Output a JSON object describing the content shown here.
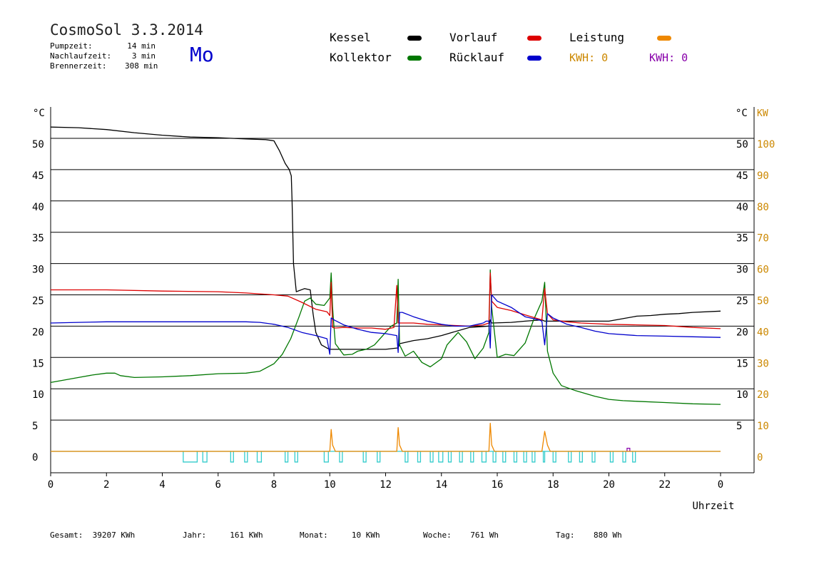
{
  "header": {
    "title": "CosmoSol 3.3.2014",
    "day": "Mo",
    "stats": [
      {
        "label": "Pumpzeit:",
        "value": "14 min"
      },
      {
        "label": "Nachlaufzeit:",
        "value": "3 min"
      },
      {
        "label": "Brennerzeit:",
        "value": "308 min"
      }
    ]
  },
  "legend": {
    "kessel": "Kessel",
    "kollektor": "Kollektor",
    "vorlauf": "Vorlauf",
    "ruecklauf": "Rücklauf",
    "leistung": "Leistung",
    "kwh_orange": "KWH: 0",
    "kwh_purple": "KWH: 0"
  },
  "colors": {
    "kessel": "#000000",
    "kollektor": "#007700",
    "vorlauf": "#dd0000",
    "ruecklauf": "#0000cc",
    "leistung": "#ee8800",
    "pump": "#33cccc",
    "purple": "#8800aa",
    "axis_kw": "#cc8800"
  },
  "footer": [
    {
      "label": "Gesamt:",
      "value": "39207 KWh"
    },
    {
      "label": "Jahr:",
      "value": "161 KWh"
    },
    {
      "label": "Monat:",
      "value": "10 KWh"
    },
    {
      "label": "Woche:",
      "value": "761 Wh"
    },
    {
      "label": "Tag:",
      "value": "880 Wh"
    }
  ],
  "chart_data": {
    "type": "line",
    "xlabel": "Uhrzeit",
    "x_ticks": [
      "0",
      "2",
      "4",
      "6",
      "8",
      "10",
      "12",
      "14",
      "16",
      "18",
      "20",
      "22",
      "0"
    ],
    "xlim": [
      0,
      24
    ],
    "y_left_label": "°C",
    "y_left_ticks": [
      0,
      5,
      10,
      15,
      20,
      25,
      30,
      35,
      40,
      45,
      50
    ],
    "ylim": [
      -3.5,
      53
    ],
    "y_right_label": "°C",
    "y_right_ticks": [
      5,
      10,
      15,
      20,
      25,
      30,
      35,
      40,
      45,
      50
    ],
    "y_right2_label": "KW",
    "y_right2_ticks": [
      0,
      10,
      20,
      30,
      40,
      50,
      60,
      70,
      80,
      90,
      100
    ],
    "grid": true,
    "series": [
      {
        "name": "Kessel",
        "x": [
          0,
          1,
          2,
          3,
          4,
          5,
          6,
          7,
          7.7,
          8,
          8.2,
          8.4,
          8.55,
          8.62,
          8.65,
          8.7,
          8.8,
          9.1,
          9.3,
          9.4,
          9.5,
          9.7,
          9.9,
          10,
          10.2,
          10.5,
          10.8,
          11,
          11.2,
          11.5,
          12,
          12.4,
          12.45,
          12.5,
          13,
          13.5,
          14,
          15,
          15.7,
          15.75,
          15.8,
          16.5,
          17,
          17.6,
          17.7,
          18,
          19,
          20,
          20.5,
          21,
          21.5,
          22,
          22.5,
          23,
          24
        ],
        "y": [
          51.8,
          51.7,
          51.4,
          50.9,
          50.5,
          50.2,
          50.1,
          49.9,
          49.8,
          49.6,
          48,
          46,
          45,
          44,
          40,
          30,
          25.5,
          26,
          25.8,
          22,
          19,
          17,
          16.5,
          16.3,
          16.3,
          16.3,
          16.3,
          16.3,
          16.3,
          16.3,
          16.3,
          16.5,
          16.5,
          17.2,
          17.7,
          18,
          18.5,
          19.8,
          20,
          21,
          20.5,
          20.6,
          20.8,
          21,
          20.8,
          20.8,
          20.8,
          20.8,
          21.2,
          21.6,
          21.7,
          21.9,
          22,
          22.2,
          22.4
        ]
      },
      {
        "name": "Kollektor",
        "x": [
          0,
          0.5,
          1,
          1.5,
          2,
          2.3,
          2.5,
          3,
          4,
          5,
          6,
          7,
          7.5,
          8,
          8.3,
          8.6,
          8.9,
          9.1,
          9.3,
          9.5,
          9.8,
          10,
          10.05,
          10.1,
          10.15,
          10.2,
          10.5,
          10.8,
          11,
          11.3,
          11.6,
          12,
          12.2,
          12.4,
          12.45,
          12.5,
          12.7,
          13,
          13.3,
          13.6,
          14,
          14.2,
          14.6,
          14.9,
          15.2,
          15.5,
          15.7,
          15.75,
          15.8,
          16,
          16.3,
          16.6,
          17,
          17.3,
          17.6,
          17.7,
          17.8,
          18,
          18.3,
          18.8,
          19.5,
          20,
          20.5,
          21,
          22,
          23,
          24
        ],
        "y": [
          11,
          11.4,
          11.8,
          12.2,
          12.5,
          12.5,
          12.1,
          11.8,
          11.9,
          12.1,
          12.4,
          12.5,
          12.8,
          14,
          15.5,
          18,
          21.5,
          24,
          24.5,
          23.5,
          23.3,
          24.5,
          28.5,
          23,
          20,
          17.2,
          15.4,
          15.5,
          16,
          16.3,
          17,
          19,
          20,
          20.5,
          27.5,
          17,
          15.2,
          16,
          14.2,
          13.5,
          14.8,
          17,
          19,
          17.5,
          14.8,
          16.5,
          19,
          29,
          23,
          15,
          15.5,
          15.3,
          17.3,
          21,
          24,
          27,
          16,
          12.5,
          10.5,
          9.7,
          8.8,
          8.3,
          8.1,
          8,
          7.8,
          7.6,
          7.5
        ]
      },
      {
        "name": "Vorlauf",
        "x": [
          0,
          2,
          4,
          6,
          7,
          8,
          8.5,
          9,
          9.5,
          9.9,
          10,
          10.05,
          10.1,
          10.2,
          10.5,
          11,
          11.5,
          12,
          12.3,
          12.4,
          12.45,
          12.5,
          13,
          13.5,
          14,
          14.5,
          15,
          15.5,
          15.7,
          15.75,
          15.8,
          16,
          16.5,
          17,
          17.6,
          17.7,
          17.8,
          18,
          18.5,
          19,
          19.5,
          20,
          21,
          22,
          23,
          24
        ],
        "y": [
          25.8,
          25.8,
          25.6,
          25.5,
          25.3,
          25,
          24.8,
          23.8,
          22.7,
          22.3,
          21.7,
          27,
          19.8,
          19.7,
          19.8,
          19.7,
          19.7,
          19.5,
          19.8,
          26.5,
          20.5,
          20.5,
          20.5,
          20.3,
          20.2,
          20.1,
          20,
          20.2,
          20.5,
          28.5,
          24,
          23,
          22.5,
          21.8,
          21,
          26,
          22,
          21,
          20.7,
          20.5,
          20.4,
          20.3,
          20.2,
          20.1,
          19.8,
          19.6
        ]
      },
      {
        "name": "Rücklauf",
        "x": [
          0,
          1,
          2,
          3,
          4,
          5,
          6,
          7,
          7.5,
          8,
          8.5,
          9,
          9.5,
          9.9,
          10,
          10.05,
          10.1,
          10.15,
          10.5,
          11,
          11.5,
          12,
          12.4,
          12.45,
          12.5,
          12.6,
          13,
          13.5,
          14,
          14.5,
          15,
          15.5,
          15.6,
          15.7,
          15.75,
          15.8,
          16,
          16.5,
          17,
          17.5,
          17.6,
          17.7,
          17.8,
          18,
          18.5,
          19,
          19.5,
          20,
          21,
          22,
          23,
          24
        ],
        "y": [
          20.5,
          20.6,
          20.7,
          20.7,
          20.7,
          20.7,
          20.7,
          20.7,
          20.6,
          20.3,
          19.8,
          19,
          18.5,
          18,
          15.5,
          21.3,
          21.2,
          21,
          20.2,
          19.5,
          19,
          18.8,
          18.5,
          15.8,
          22.2,
          22.2,
          21.5,
          20.8,
          20.3,
          20,
          20,
          20.5,
          20.8,
          20.8,
          16.5,
          25,
          24,
          23,
          21.5,
          21,
          20.8,
          17,
          22,
          21.3,
          20.3,
          19.8,
          19.2,
          18.8,
          18.5,
          18.4,
          18.3,
          18.2
        ]
      },
      {
        "name": "Leistung",
        "x": [
          0,
          9.9,
          10,
          10.05,
          10.1,
          10.2,
          12.3,
          12.4,
          12.45,
          12.5,
          12.6,
          15.6,
          15.7,
          15.75,
          15.8,
          15.9,
          17.5,
          17.6,
          17.7,
          17.8,
          17.9,
          24
        ],
        "y": [
          0,
          0,
          0,
          3.5,
          1,
          0,
          0,
          0,
          3.8,
          1,
          0,
          0,
          0,
          4.5,
          1,
          0,
          0,
          0,
          3.2,
          1,
          0,
          0
        ]
      },
      {
        "name": "Pumpe",
        "x": [
          0,
          24
        ],
        "y": [
          0,
          0
        ]
      }
    ],
    "pump_pulses": [
      [
        4.75,
        5.25
      ],
      [
        5.45,
        5.6
      ],
      [
        6.45,
        6.55
      ],
      [
        6.95,
        7.05
      ],
      [
        7.4,
        7.55
      ],
      [
        8.4,
        8.5
      ],
      [
        8.75,
        8.85
      ],
      [
        9.8,
        9.95
      ],
      [
        10.35,
        10.45
      ],
      [
        11.2,
        11.3
      ],
      [
        11.7,
        11.8
      ],
      [
        12.7,
        12.8
      ],
      [
        13.15,
        13.25
      ],
      [
        13.6,
        13.7
      ],
      [
        13.9,
        14.05
      ],
      [
        14.25,
        14.35
      ],
      [
        14.65,
        14.75
      ],
      [
        15.05,
        15.15
      ],
      [
        15.45,
        15.6
      ],
      [
        15.85,
        15.95
      ],
      [
        16.2,
        16.3
      ],
      [
        16.6,
        16.7
      ],
      [
        16.95,
        17.05
      ],
      [
        17.25,
        17.35
      ],
      [
        17.65,
        17.7
      ],
      [
        18,
        18.1
      ],
      [
        18.55,
        18.65
      ],
      [
        18.95,
        19.05
      ],
      [
        19.4,
        19.5
      ],
      [
        20.05,
        20.15
      ],
      [
        20.5,
        20.6
      ],
      [
        20.85,
        20.95
      ]
    ],
    "purple_pulses": [
      [
        20.65,
        20.75
      ]
    ]
  }
}
